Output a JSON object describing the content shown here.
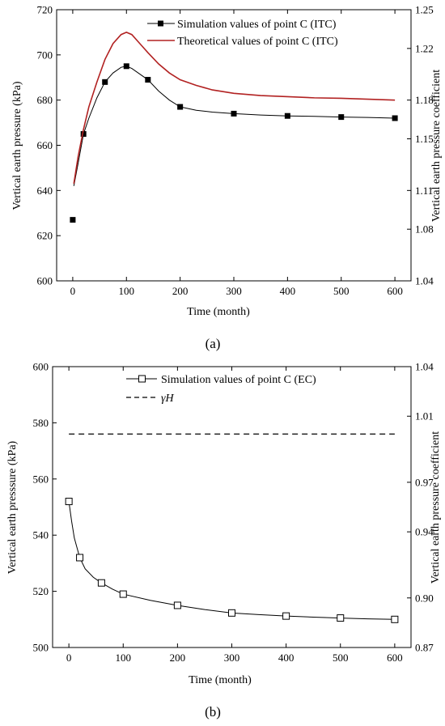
{
  "chart_data": [
    {
      "type": "line",
      "panel_label": "(a)",
      "xlabel": "Time (month)",
      "ylabel": "Vertical earth pressure (kPa)",
      "y2label": "Vertical earth pressure coefficient",
      "xlim": [
        -30,
        630
      ],
      "ylim": [
        600,
        720
      ],
      "y2lim": [
        1.04,
        1.25
      ],
      "xticks": [
        0,
        100,
        200,
        300,
        400,
        500,
        600
      ],
      "yticks": [
        600,
        620,
        640,
        660,
        680,
        700,
        720
      ],
      "y2ticks": [
        "1.04",
        "1.08",
        "1.11",
        "1.15",
        "1.18",
        "1.22",
        "1.25"
      ],
      "legend_position": "top-right",
      "series": [
        {
          "name": "Simulation values of point C  (ITC)",
          "color": "#000000",
          "marker": "filled-square",
          "points": [
            [
              0,
              627
            ],
            [
              20,
              665
            ],
            [
              60,
              688
            ],
            [
              100,
              695
            ],
            [
              140,
              689
            ],
            [
              200,
              677
            ],
            [
              300,
              674
            ],
            [
              400,
              673
            ],
            [
              500,
              672.5
            ],
            [
              600,
              672
            ]
          ],
          "curve": [
            [
              2,
              642
            ],
            [
              10,
              652
            ],
            [
              20,
              665
            ],
            [
              30,
              672
            ],
            [
              45,
              681
            ],
            [
              60,
              688
            ],
            [
              75,
              692
            ],
            [
              90,
              694.5
            ],
            [
              100,
              695
            ],
            [
              110,
              694
            ],
            [
              125,
              691.5
            ],
            [
              140,
              689
            ],
            [
              160,
              684
            ],
            [
              180,
              680
            ],
            [
              200,
              677
            ],
            [
              230,
              675.5
            ],
            [
              260,
              674.7
            ],
            [
              300,
              674
            ],
            [
              350,
              673.4
            ],
            [
              400,
              673
            ],
            [
              450,
              672.8
            ],
            [
              500,
              672.5
            ],
            [
              550,
              672.3
            ],
            [
              600,
              672
            ]
          ]
        },
        {
          "name": "Theoretical values of point C (ITC)",
          "color": "#b22222",
          "marker": "none",
          "points": [],
          "curve": [
            [
              2,
              643
            ],
            [
              10,
              655
            ],
            [
              20,
              667
            ],
            [
              30,
              677
            ],
            [
              45,
              688
            ],
            [
              60,
              698
            ],
            [
              75,
              705
            ],
            [
              90,
              709
            ],
            [
              100,
              710
            ],
            [
              110,
              709
            ],
            [
              125,
              705
            ],
            [
              140,
              701
            ],
            [
              160,
              696
            ],
            [
              180,
              692
            ],
            [
              200,
              689
            ],
            [
              230,
              686.5
            ],
            [
              260,
              684.5
            ],
            [
              300,
              683
            ],
            [
              350,
              682
            ],
            [
              400,
              681.5
            ],
            [
              450,
              681
            ],
            [
              500,
              680.8
            ],
            [
              550,
              680.4
            ],
            [
              600,
              680
            ]
          ]
        }
      ]
    },
    {
      "type": "line",
      "panel_label": "(b)",
      "xlabel": "Time (month)",
      "ylabel": "Vertical earth presssure (kPa)",
      "y2label": "Vertical earth pressure coefficient",
      "xlim": [
        -30,
        630
      ],
      "ylim": [
        500,
        600
      ],
      "y2lim": [
        0.87,
        1.04
      ],
      "xticks": [
        0,
        100,
        200,
        300,
        400,
        500,
        600
      ],
      "yticks": [
        500,
        520,
        540,
        560,
        580,
        600
      ],
      "y2ticks": [
        "0.87",
        "0.90",
        "0.94",
        "0.97",
        "1.01",
        "1.04"
      ],
      "legend_position": "top-right",
      "series": [
        {
          "name": "Simulation values of point C (EC)",
          "color": "#000000",
          "marker": "open-square",
          "points": [
            [
              0,
              552
            ],
            [
              20,
              532
            ],
            [
              60,
              523
            ],
            [
              100,
              519
            ],
            [
              200,
              515
            ],
            [
              300,
              512.3
            ],
            [
              400,
              511.2
            ],
            [
              500,
              510.5
            ],
            [
              600,
              510
            ]
          ],
          "curve": [
            [
              0,
              552
            ],
            [
              5,
              545
            ],
            [
              10,
              539
            ],
            [
              20,
              532
            ],
            [
              30,
              528
            ],
            [
              45,
              525
            ],
            [
              60,
              523
            ],
            [
              80,
              520.8
            ],
            [
              100,
              519
            ],
            [
              150,
              516.8
            ],
            [
              200,
              515
            ],
            [
              250,
              513.5
            ],
            [
              300,
              512.3
            ],
            [
              350,
              511.7
            ],
            [
              400,
              511.2
            ],
            [
              450,
              510.8
            ],
            [
              500,
              510.5
            ],
            [
              550,
              510.2
            ],
            [
              600,
              510
            ]
          ]
        },
        {
          "name": "γH",
          "color": "#000000",
          "marker": "none",
          "dashed": true,
          "points": [],
          "curve": [
            [
              0,
              576
            ],
            [
              600,
              576
            ]
          ]
        }
      ]
    }
  ]
}
